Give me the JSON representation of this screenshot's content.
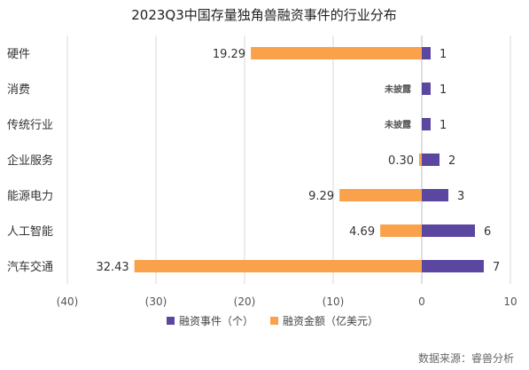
{
  "chart_data": {
    "type": "bar",
    "orientation": "horizontal-diverging",
    "title": "2023Q3中国存量独角兽融资事件的行业分布",
    "categories": [
      "硬件",
      "消费",
      "传统行业",
      "企业服务",
      "能源电力",
      "人工智能",
      "汽车交通"
    ],
    "series": [
      {
        "name": "融资事件（个）",
        "color": "#5b47a0",
        "values": [
          1,
          1,
          1,
          2,
          3,
          6,
          7
        ],
        "labels": [
          "1",
          "1",
          "1",
          "2",
          "3",
          "6",
          "7"
        ]
      },
      {
        "name": "融资金额（亿美元）",
        "color": "#f9a24b",
        "values": [
          -19.29,
          null,
          null,
          -0.3,
          -9.29,
          -4.69,
          -32.43
        ],
        "labels": [
          "19.29",
          "未披露",
          "未披露",
          "0.30",
          "9.29",
          "4.69",
          "32.43"
        ]
      }
    ],
    "xlim": [
      -40,
      10
    ],
    "xticks": [
      "(40)",
      "(30)",
      "(20)",
      "(10)",
      "0",
      "10"
    ],
    "grid": true,
    "legend_position": "bottom"
  },
  "source": "数据来源：睿兽分析"
}
